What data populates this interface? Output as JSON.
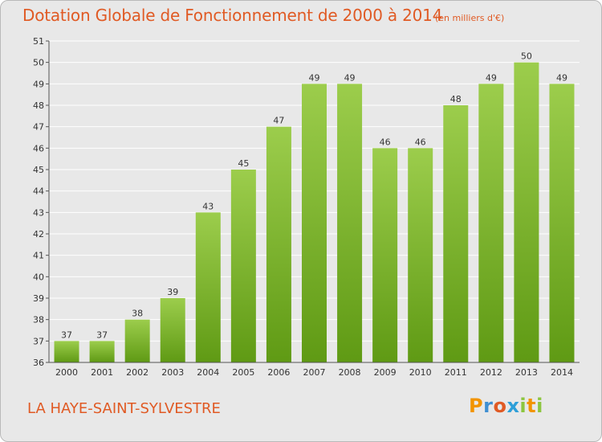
{
  "header": {
    "title": "Dotation Globale de Fonctionnement de 2000 à 2014",
    "unit": "(en milliers d'€)"
  },
  "footer": {
    "commune": "LA HAYE-SAINT-SYLVESTRE",
    "logo_letters": [
      "P",
      "r",
      "o",
      "x",
      "i",
      "t",
      "i"
    ],
    "logo_colors": [
      "#f29400",
      "#3f8fd2",
      "#e05a24",
      "#2e9fd8",
      "#8cc63f",
      "#f29400",
      "#8cc63f"
    ]
  },
  "colors": {
    "bar_top": "#9ccd4c",
    "bar_bottom": "#5f9a14",
    "accent": "#e05a24",
    "grid": "#ffffff"
  },
  "chart_data": {
    "type": "bar",
    "title": "Dotation Globale de Fonctionnement de 2000 à 2014",
    "subtitle": "(en milliers d'€)",
    "categories": [
      "2000",
      "2001",
      "2002",
      "2003",
      "2004",
      "2005",
      "2006",
      "2007",
      "2008",
      "2009",
      "2010",
      "2011",
      "2012",
      "2013",
      "2014"
    ],
    "values": [
      37,
      37,
      38,
      39,
      43,
      45,
      47,
      49,
      49,
      46,
      46,
      48,
      49,
      50,
      49
    ],
    "ylim": [
      36,
      51
    ],
    "yticks": [
      36,
      37,
      38,
      39,
      40,
      41,
      42,
      43,
      44,
      45,
      46,
      47,
      48,
      49,
      50,
      51
    ],
    "grid": true,
    "data_labels": true
  }
}
